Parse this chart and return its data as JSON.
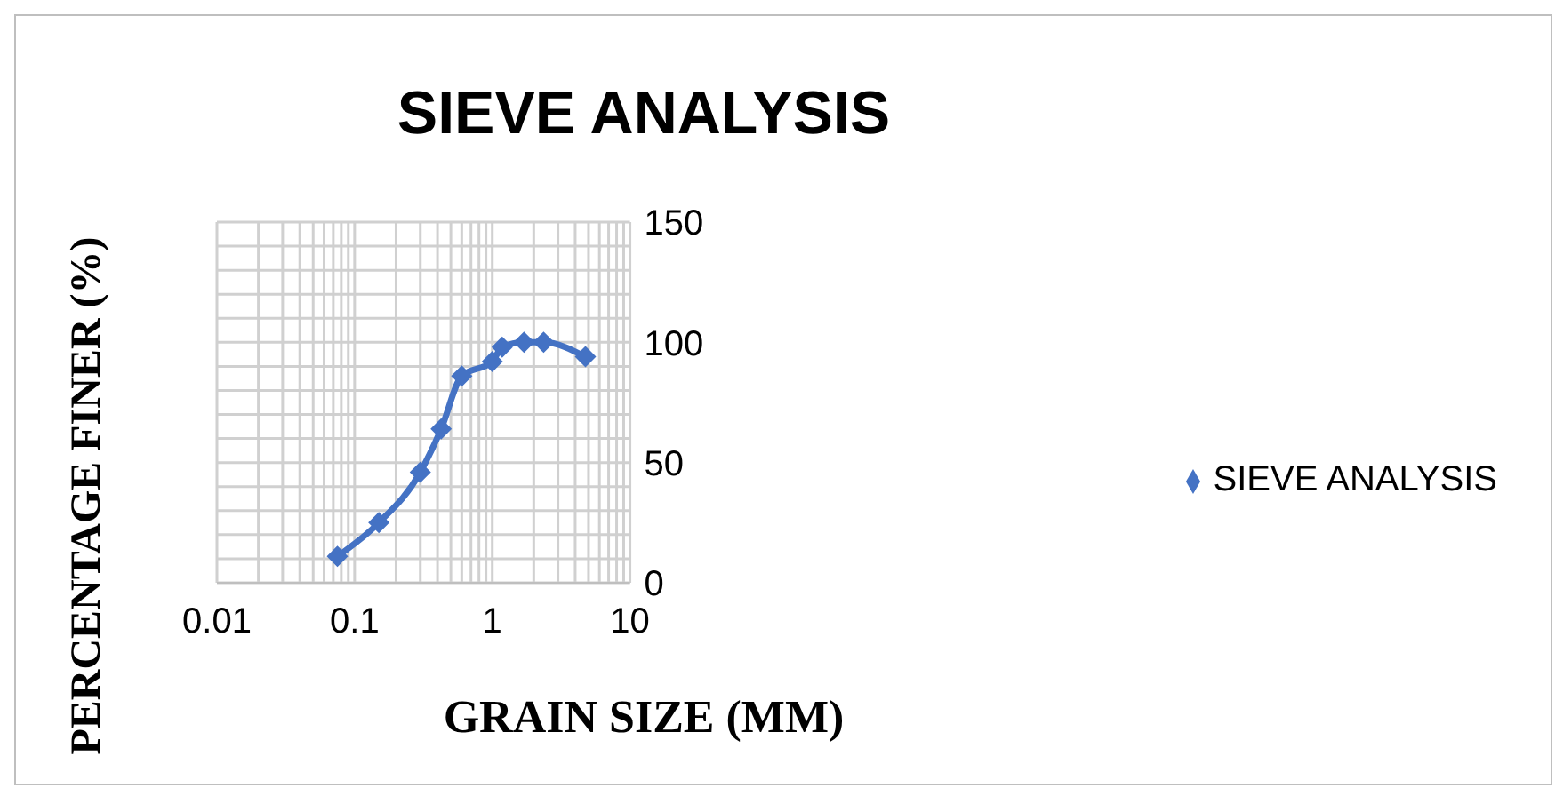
{
  "chart_data": {
    "type": "line",
    "title": "SIEVE ANALYSIS",
    "xlabel": "GRAIN SIZE (MM)",
    "ylabel": "PERCENTAGE FINER (%)",
    "x": [
      0.075,
      0.15,
      0.3,
      0.425,
      0.6,
      1,
      1.18,
      1.7,
      2.36,
      4.75
    ],
    "series": [
      {
        "name": "SIEVE ANALYSIS",
        "color": "#4472c4",
        "values": [
          11,
          25,
          46,
          64,
          86,
          92,
          98,
          100,
          100,
          94
        ]
      }
    ],
    "log": "x",
    "xlim": [
      0.01,
      10
    ],
    "xticks": [
      0.01,
      {
        "value": 0.02,
        "label": null
      },
      {
        "value": 0.03,
        "label": null
      },
      {
        "value": 0.04,
        "label": null
      },
      {
        "value": 0.05,
        "label": null
      },
      {
        "value": 0.06,
        "label": null
      },
      {
        "value": 0.07,
        "label": null
      },
      {
        "value": 0.08,
        "label": null
      },
      {
        "value": 0.09,
        "label": null
      },
      0.1,
      {
        "value": 0.2,
        "label": null
      },
      {
        "value": 0.3,
        "label": null
      },
      {
        "value": 0.4,
        "label": null
      },
      {
        "value": 0.5,
        "label": null
      },
      {
        "value": 0.6,
        "label": null
      },
      {
        "value": 0.7,
        "label": null
      },
      {
        "value": 0.8,
        "label": null
      },
      {
        "value": 0.9,
        "label": null
      },
      1,
      {
        "value": 2,
        "label": null
      },
      {
        "value": 3,
        "label": null
      },
      {
        "value": 4,
        "label": null
      },
      {
        "value": 5,
        "label": null
      },
      {
        "value": 6,
        "label": null
      },
      {
        "value": 7,
        "label": null
      },
      {
        "value": 8,
        "label": null
      },
      {
        "value": 9,
        "label": null
      },
      10
    ],
    "ylim": [
      0,
      150
    ],
    "yticks": [
      0,
      {
        "value": 10,
        "label": null
      },
      {
        "value": 20,
        "label": null
      },
      {
        "value": 30,
        "label": null
      },
      {
        "value": 40,
        "label": null
      },
      50,
      {
        "value": 60,
        "label": null
      },
      {
        "value": 70,
        "label": null
      },
      {
        "value": 80,
        "label": null
      },
      {
        "value": 90,
        "label": null
      },
      100,
      {
        "value": 110,
        "label": null
      },
      {
        "value": 120,
        "label": null
      },
      {
        "value": 130,
        "label": null
      },
      {
        "value": 140,
        "label": null
      },
      150
    ],
    "grid": true,
    "legend": "right",
    "marker": "diamond",
    "line_style": "solid"
  }
}
